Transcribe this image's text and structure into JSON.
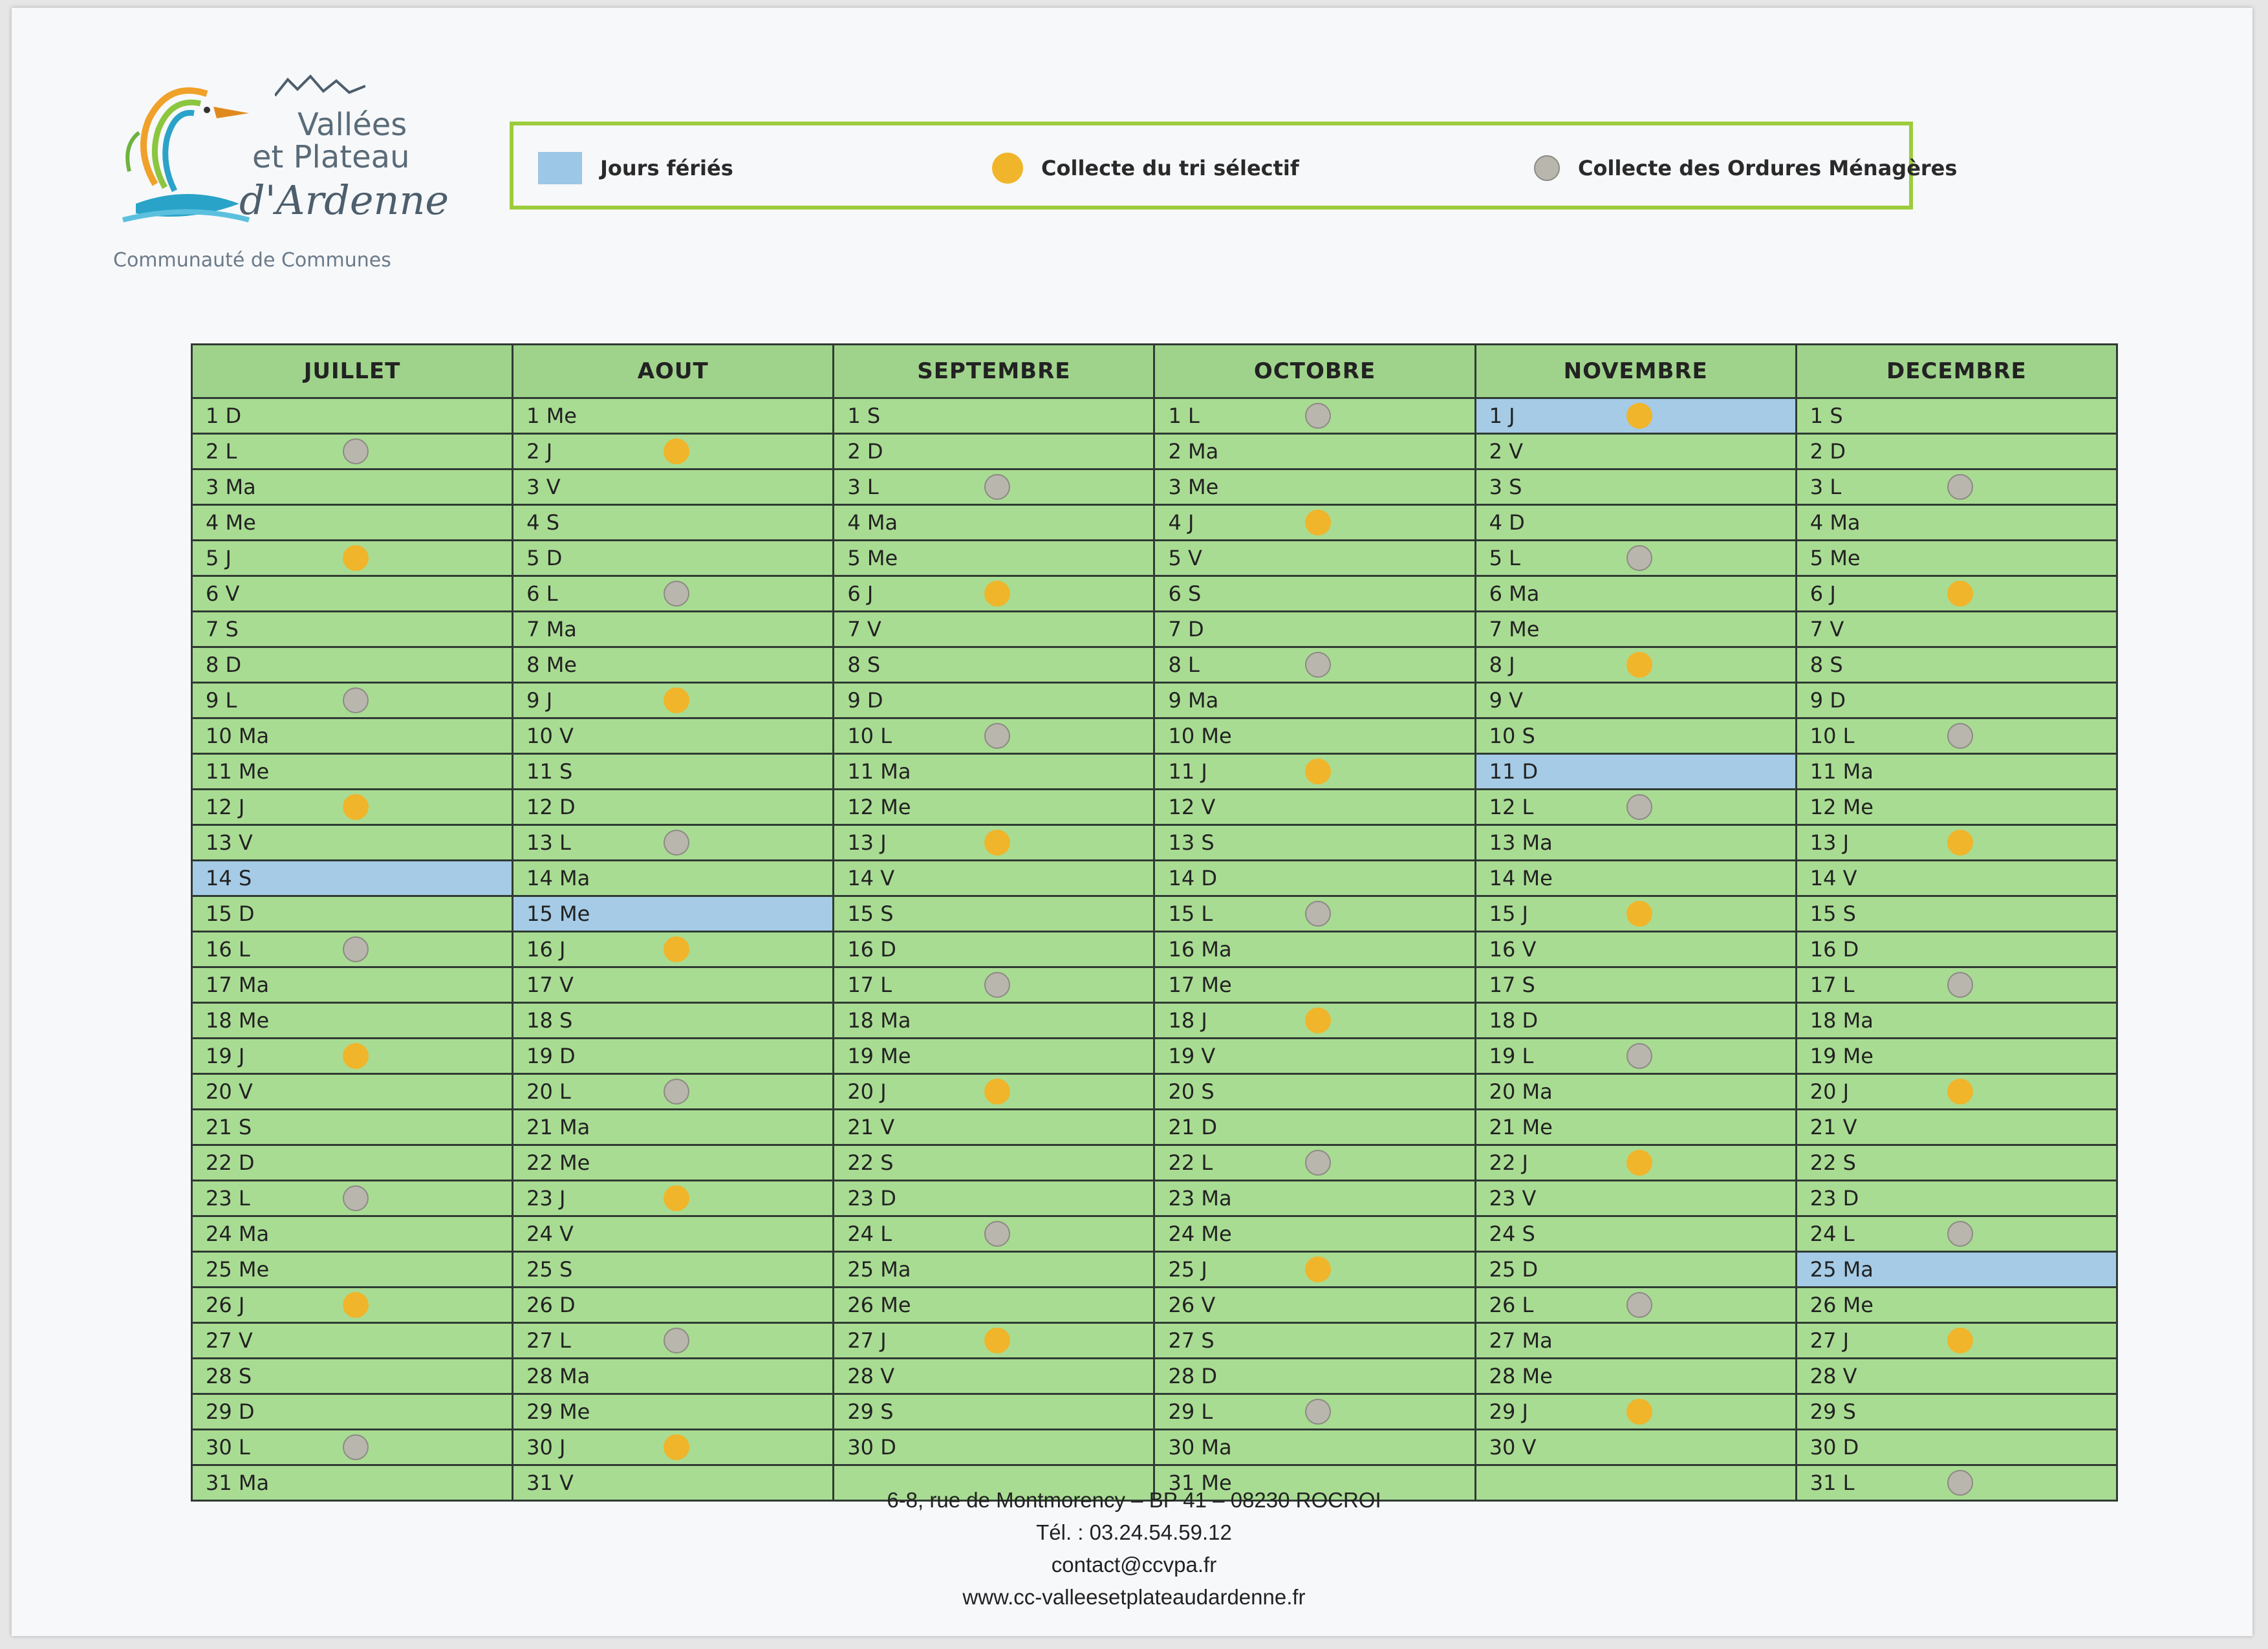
{
  "logo": {
    "line1": "Vallées",
    "line2": "et Plateau",
    "line3": "d'Ardenne",
    "subtitle": "Communauté de Communes"
  },
  "legend": {
    "holiday": "Jours fériés",
    "tri": "Collecte du tri sélectif",
    "om": "Collecte des Ordures Ménagères"
  },
  "colors": {
    "holiday": "#a5cbe6",
    "tri": "#f0b52a",
    "om": "#b9b6ae",
    "cell": "#a9dc93",
    "header": "#9fd38b",
    "legend_border": "#9ccc3c"
  },
  "months": [
    {
      "name": "JUILLET",
      "days": [
        {
          "label": "1 D"
        },
        {
          "label": "2 L",
          "om": true
        },
        {
          "label": "3 Ma"
        },
        {
          "label": "4 Me"
        },
        {
          "label": "5 J",
          "tri": true
        },
        {
          "label": "6 V"
        },
        {
          "label": "7 S"
        },
        {
          "label": "8 D"
        },
        {
          "label": "9 L",
          "om": true
        },
        {
          "label": "10 Ma"
        },
        {
          "label": "11 Me"
        },
        {
          "label": "12 J",
          "tri": true
        },
        {
          "label": "13 V"
        },
        {
          "label": "14 S",
          "holiday": true
        },
        {
          "label": "15 D"
        },
        {
          "label": "16 L",
          "om": true
        },
        {
          "label": "17 Ma"
        },
        {
          "label": "18 Me"
        },
        {
          "label": "19 J",
          "tri": true
        },
        {
          "label": "20 V"
        },
        {
          "label": "21 S"
        },
        {
          "label": "22 D"
        },
        {
          "label": "23 L",
          "om": true
        },
        {
          "label": "24 Ma"
        },
        {
          "label": "25 Me"
        },
        {
          "label": "26 J",
          "tri": true
        },
        {
          "label": "27 V"
        },
        {
          "label": "28 S"
        },
        {
          "label": "29 D"
        },
        {
          "label": "30 L",
          "om": true
        },
        {
          "label": "31 Ma"
        }
      ]
    },
    {
      "name": "AOUT",
      "days": [
        {
          "label": "1 Me"
        },
        {
          "label": "2 J",
          "tri": true
        },
        {
          "label": "3 V"
        },
        {
          "label": "4 S"
        },
        {
          "label": "5 D"
        },
        {
          "label": "6 L",
          "om": true
        },
        {
          "label": "7 Ma"
        },
        {
          "label": "8 Me"
        },
        {
          "label": "9 J",
          "tri": true
        },
        {
          "label": "10 V"
        },
        {
          "label": "11 S"
        },
        {
          "label": "12 D"
        },
        {
          "label": "13 L",
          "om": true
        },
        {
          "label": "14 Ma"
        },
        {
          "label": "15 Me",
          "holiday": true
        },
        {
          "label": "16 J",
          "tri": true
        },
        {
          "label": "17 V"
        },
        {
          "label": "18 S"
        },
        {
          "label": "19 D"
        },
        {
          "label": "20 L",
          "om": true
        },
        {
          "label": "21 Ma"
        },
        {
          "label": "22 Me"
        },
        {
          "label": "23 J",
          "tri": true
        },
        {
          "label": "24 V"
        },
        {
          "label": "25 S"
        },
        {
          "label": "26 D"
        },
        {
          "label": "27 L",
          "om": true
        },
        {
          "label": "28 Ma"
        },
        {
          "label": "29 Me"
        },
        {
          "label": "30 J",
          "tri": true
        },
        {
          "label": "31 V"
        }
      ]
    },
    {
      "name": "SEPTEMBRE",
      "days": [
        {
          "label": "1 S"
        },
        {
          "label": "2 D"
        },
        {
          "label": "3 L",
          "om": true
        },
        {
          "label": "4 Ma"
        },
        {
          "label": "5 Me"
        },
        {
          "label": "6 J",
          "tri": true
        },
        {
          "label": "7 V"
        },
        {
          "label": "8 S"
        },
        {
          "label": "9 D"
        },
        {
          "label": "10 L",
          "om": true
        },
        {
          "label": "11 Ma"
        },
        {
          "label": "12 Me"
        },
        {
          "label": "13 J",
          "tri": true
        },
        {
          "label": "14 V"
        },
        {
          "label": "15 S"
        },
        {
          "label": "16 D"
        },
        {
          "label": "17 L",
          "om": true
        },
        {
          "label": "18 Ma"
        },
        {
          "label": "19 Me"
        },
        {
          "label": "20 J",
          "tri": true
        },
        {
          "label": "21 V"
        },
        {
          "label": "22 S"
        },
        {
          "label": "23 D"
        },
        {
          "label": "24 L",
          "om": true
        },
        {
          "label": "25 Ma"
        },
        {
          "label": "26 Me"
        },
        {
          "label": "27 J",
          "tri": true
        },
        {
          "label": "28 V"
        },
        {
          "label": "29 S"
        },
        {
          "label": "30 D"
        },
        {
          "label": ""
        }
      ]
    },
    {
      "name": "OCTOBRE",
      "days": [
        {
          "label": "1 L",
          "om": true
        },
        {
          "label": "2 Ma"
        },
        {
          "label": "3 Me"
        },
        {
          "label": "4 J",
          "tri": true
        },
        {
          "label": "5 V"
        },
        {
          "label": "6 S"
        },
        {
          "label": "7 D"
        },
        {
          "label": "8 L",
          "om": true
        },
        {
          "label": "9 Ma"
        },
        {
          "label": "10 Me"
        },
        {
          "label": "11 J",
          "tri": true
        },
        {
          "label": "12 V"
        },
        {
          "label": "13 S"
        },
        {
          "label": "14 D"
        },
        {
          "label": "15 L",
          "om": true
        },
        {
          "label": "16 Ma"
        },
        {
          "label": "17 Me"
        },
        {
          "label": "18 J",
          "tri": true
        },
        {
          "label": "19 V"
        },
        {
          "label": "20 S"
        },
        {
          "label": "21 D"
        },
        {
          "label": "22 L",
          "om": true
        },
        {
          "label": "23 Ma"
        },
        {
          "label": "24 Me"
        },
        {
          "label": "25 J",
          "tri": true
        },
        {
          "label": "26 V"
        },
        {
          "label": "27 S"
        },
        {
          "label": "28 D"
        },
        {
          "label": "29 L",
          "om": true
        },
        {
          "label": "30 Ma"
        },
        {
          "label": "31 Me"
        }
      ]
    },
    {
      "name": "NOVEMBRE",
      "days": [
        {
          "label": "1 J",
          "holiday": true,
          "tri": true
        },
        {
          "label": "2 V"
        },
        {
          "label": "3 S"
        },
        {
          "label": "4 D"
        },
        {
          "label": "5 L",
          "om": true
        },
        {
          "label": "6 Ma"
        },
        {
          "label": "7 Me"
        },
        {
          "label": "8 J",
          "tri": true
        },
        {
          "label": "9 V"
        },
        {
          "label": "10 S"
        },
        {
          "label": "11 D",
          "holiday": true
        },
        {
          "label": "12 L",
          "om": true
        },
        {
          "label": "13 Ma"
        },
        {
          "label": "14 Me"
        },
        {
          "label": "15 J",
          "tri": true
        },
        {
          "label": "16 V"
        },
        {
          "label": "17 S"
        },
        {
          "label": "18 D"
        },
        {
          "label": "19 L",
          "om": true
        },
        {
          "label": "20 Ma"
        },
        {
          "label": "21 Me"
        },
        {
          "label": "22 J",
          "tri": true
        },
        {
          "label": "23 V"
        },
        {
          "label": "24 S"
        },
        {
          "label": "25 D"
        },
        {
          "label": "26 L",
          "om": true
        },
        {
          "label": "27 Ma"
        },
        {
          "label": "28 Me"
        },
        {
          "label": "29 J",
          "tri": true
        },
        {
          "label": "30 V"
        },
        {
          "label": ""
        }
      ]
    },
    {
      "name": "DECEMBRE",
      "days": [
        {
          "label": "1 S"
        },
        {
          "label": "2 D"
        },
        {
          "label": "3 L",
          "om": true
        },
        {
          "label": "4 Ma"
        },
        {
          "label": "5 Me"
        },
        {
          "label": "6 J",
          "tri": true
        },
        {
          "label": "7 V"
        },
        {
          "label": "8 S"
        },
        {
          "label": "9 D"
        },
        {
          "label": "10 L",
          "om": true
        },
        {
          "label": "11 Ma"
        },
        {
          "label": "12 Me"
        },
        {
          "label": "13 J",
          "tri": true
        },
        {
          "label": "14 V"
        },
        {
          "label": "15 S"
        },
        {
          "label": "16 D"
        },
        {
          "label": "17 L",
          "om": true
        },
        {
          "label": "18 Ma"
        },
        {
          "label": "19 Me"
        },
        {
          "label": "20 J",
          "tri": true
        },
        {
          "label": "21 V"
        },
        {
          "label": "22 S"
        },
        {
          "label": "23 D"
        },
        {
          "label": "24 L",
          "om": true
        },
        {
          "label": "25 Ma",
          "holiday": true
        },
        {
          "label": "26 Me"
        },
        {
          "label": "27 J",
          "tri": true
        },
        {
          "label": "28 V"
        },
        {
          "label": "29 S"
        },
        {
          "label": "30 D"
        },
        {
          "label": "31 L",
          "om": true
        }
      ]
    }
  ],
  "footer": {
    "address": "6-8, rue de Montmorency – BP 41 – 08230 ROCROI",
    "phone": "Tél. : 03.24.54.59.12",
    "email": "contact@ccvpa.fr",
    "website": "www.cc-valleesetplateaudardenne.fr"
  }
}
